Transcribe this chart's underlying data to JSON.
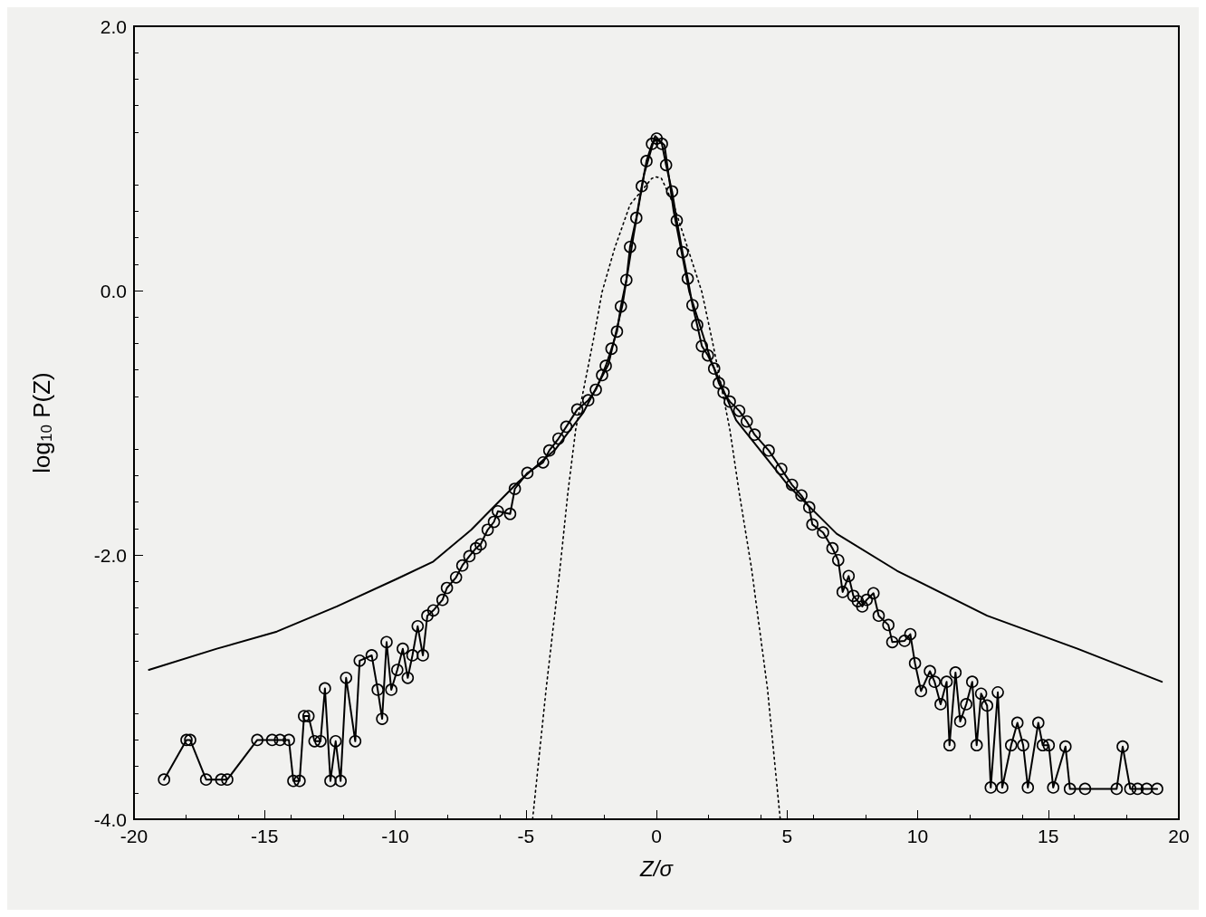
{
  "chart_data": {
    "type": "line",
    "xlabel": "Z/σ",
    "ylabel": "log$_{10}$ P(Z)",
    "xlim": [
      -20,
      20
    ],
    "xticks": [
      -20,
      -15,
      -10,
      -5,
      0,
      5,
      10,
      15,
      20
    ],
    "ylim": [
      -4,
      2
    ],
    "yticks": [
      {
        "value": -4,
        "label": "-4.0"
      },
      {
        "value": -2,
        "label": "-2.0"
      },
      {
        "value": 0,
        "label": "0.0"
      },
      {
        "value": 2,
        "label": "2.0"
      }
    ],
    "grid": false,
    "series": [
      {
        "color": "#000000",
        "marker": "circle",
        "line_style": "solid",
        "x": [
          -18.85,
          -17.99,
          -17.85,
          -17.24,
          -16.66,
          -16.43,
          -15.28,
          -14.71,
          -14.41,
          -14.07,
          -13.9,
          -13.66,
          -13.49,
          -13.32,
          -13.09,
          -12.86,
          -12.69,
          -12.48,
          -12.28,
          -12.09,
          -11.88,
          -11.53,
          -11.36,
          -10.9,
          -10.67,
          -10.5,
          -10.33,
          -10.15,
          -9.92,
          -9.71,
          -9.52,
          -9.34,
          -9.14,
          -8.94,
          -8.77,
          -8.54,
          -8.19,
          -8.02,
          -7.67,
          -7.43,
          -7.16,
          -6.91,
          -6.73,
          -6.46,
          -6.22,
          -6.07,
          -5.6,
          -5.42,
          -4.94,
          -4.34,
          -4.1,
          -3.75,
          -3.45,
          -3.03,
          -2.61,
          -2.32,
          -2.08,
          -1.94,
          -1.72,
          -1.51,
          -1.36,
          -1.15,
          -1.01,
          -0.77,
          -0.56,
          -0.38,
          -0.17,
          0.01,
          0.21,
          0.37,
          0.6,
          0.78,
          1.0,
          1.2,
          1.38,
          1.56,
          1.74,
          1.97,
          2.21,
          2.39,
          2.57,
          2.81,
          3.17,
          3.46,
          3.76,
          4.3,
          4.78,
          5.19,
          5.55,
          5.85,
          5.97,
          6.38,
          6.74,
          6.96,
          7.13,
          7.36,
          7.54,
          7.71,
          7.88,
          8.05,
          8.31,
          8.51,
          8.88,
          9.03,
          9.5,
          9.72,
          9.9,
          10.13,
          10.47,
          10.65,
          10.88,
          11.11,
          11.22,
          11.45,
          11.63,
          11.86,
          12.09,
          12.26,
          12.43,
          12.66,
          12.8,
          13.07,
          13.24,
          13.58,
          13.82,
          14.04,
          14.22,
          14.62,
          14.79,
          15.02,
          15.19,
          15.66,
          15.83,
          16.41,
          17.62,
          17.85,
          18.14,
          18.42,
          18.77,
          19.17
        ],
        "values": [
          -3.7,
          -3.4,
          -3.4,
          -3.7,
          -3.7,
          -3.7,
          -3.4,
          -3.4,
          -3.4,
          -3.4,
          -3.71,
          -3.71,
          -3.22,
          -3.22,
          -3.41,
          -3.41,
          -3.01,
          -3.71,
          -3.41,
          -3.71,
          -2.93,
          -3.41,
          -2.8,
          -2.76,
          -3.02,
          -3.24,
          -2.66,
          -3.02,
          -2.87,
          -2.71,
          -2.93,
          -2.76,
          -2.54,
          -2.76,
          -2.46,
          -2.42,
          -2.34,
          -2.25,
          -2.17,
          -2.08,
          -2.01,
          -1.95,
          -1.92,
          -1.81,
          -1.75,
          -1.67,
          -1.69,
          -1.5,
          -1.38,
          -1.3,
          -1.21,
          -1.12,
          -1.03,
          -0.9,
          -0.83,
          -0.75,
          -0.64,
          -0.57,
          -0.44,
          -0.31,
          -0.12,
          0.08,
          0.33,
          0.55,
          0.79,
          0.98,
          1.11,
          1.15,
          1.11,
          0.95,
          0.75,
          0.53,
          0.29,
          0.09,
          -0.11,
          -0.26,
          -0.42,
          -0.49,
          -0.59,
          -0.7,
          -0.77,
          -0.84,
          -0.91,
          -0.99,
          -1.09,
          -1.21,
          -1.35,
          -1.47,
          -1.55,
          -1.64,
          -1.77,
          -1.83,
          -1.95,
          -2.04,
          -2.28,
          -2.16,
          -2.31,
          -2.35,
          -2.39,
          -2.34,
          -2.29,
          -2.46,
          -2.53,
          -2.66,
          -2.65,
          -2.6,
          -2.82,
          -3.03,
          -2.88,
          -2.96,
          -3.13,
          -2.96,
          -3.44,
          -2.89,
          -3.26,
          -3.13,
          -2.96,
          -3.44,
          -3.05,
          -3.14,
          -3.76,
          -3.04,
          -3.76,
          -3.44,
          -3.27,
          -3.44,
          -3.76,
          -3.27,
          -3.44,
          -3.44,
          -3.76,
          -3.45,
          -3.77,
          -3.77,
          -3.77,
          -3.45,
          -3.77,
          -3.77,
          -3.77,
          -3.77
        ]
      },
      {
        "color": "#000000",
        "marker": "none",
        "line_style": "solid",
        "x": [
          -19.43,
          -16.83,
          -14.53,
          -12.23,
          -9.92,
          -8.54,
          -7.09,
          -5.3,
          -3.86,
          -2.79,
          -1.84,
          -1.3,
          -0.88,
          -0.47,
          -0.05,
          0.31,
          0.66,
          1.26,
          2.09,
          3.05,
          5.07,
          6.9,
          9.21,
          12.66,
          16.12,
          19.35
        ],
        "values": [
          -2.87,
          -2.71,
          -2.58,
          -2.39,
          -2.18,
          -2.05,
          -1.81,
          -1.45,
          -1.2,
          -0.92,
          -0.56,
          -0.11,
          0.41,
          0.88,
          1.17,
          1.1,
          0.6,
          -0.01,
          -0.53,
          -0.98,
          -1.48,
          -1.84,
          -2.12,
          -2.46,
          -2.71,
          -2.96
        ]
      },
      {
        "color": "#000000",
        "marker": "none",
        "line_style": "dotted",
        "x": [
          -4.74,
          -4.22,
          -3.69,
          -3.39,
          -3.09,
          -2.79,
          -2.43,
          -2.08,
          -1.6,
          -1.01,
          -0.17,
          0,
          0.19,
          0.66,
          1.2,
          1.74,
          2.15,
          2.51,
          2.81,
          3.17,
          3.64,
          4.25,
          4.74
        ],
        "values": [
          -4,
          -3.01,
          -2.1,
          -1.53,
          -1.05,
          -0.75,
          -0.39,
          -0.01,
          0.32,
          0.65,
          0.85,
          0.86,
          0.85,
          0.65,
          0.32,
          -0.01,
          -0.39,
          -0.75,
          -1.05,
          -1.53,
          -2.1,
          -3.01,
          -4
        ]
      }
    ]
  }
}
